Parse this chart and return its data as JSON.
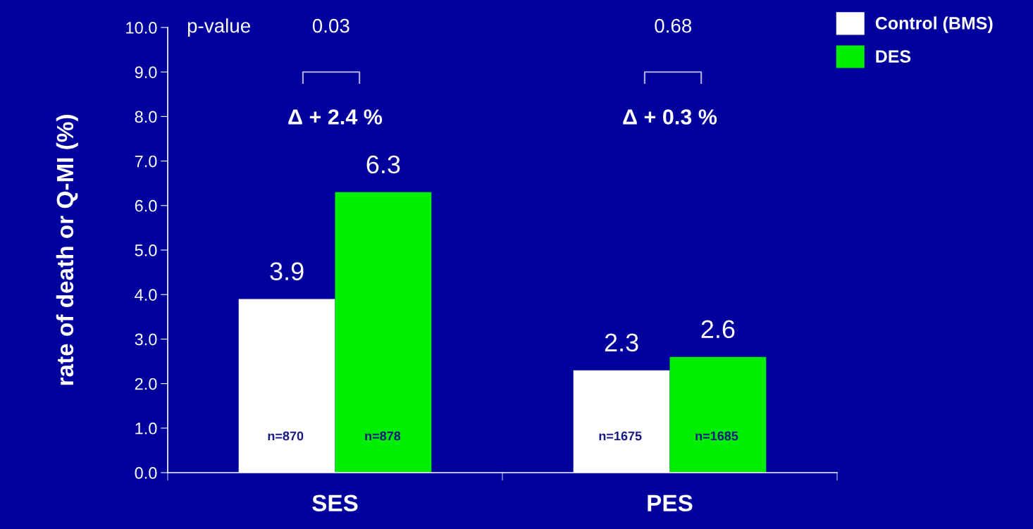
{
  "chart_data": {
    "type": "bar",
    "ylabel": "rate of death or Q-MI (%)",
    "categories": [
      "SES",
      "PES"
    ],
    "series": [
      {
        "name": "Control (BMS)",
        "color": "#ffffff",
        "values": [
          3.9,
          2.3
        ]
      },
      {
        "name": "DES",
        "color": "#00ee00",
        "values": [
          6.3,
          2.6
        ]
      }
    ],
    "ylim": [
      0,
      10
    ],
    "yticks": [
      {
        "value": 0,
        "label": "0.0"
      },
      {
        "value": 1,
        "label": "1.0"
      },
      {
        "value": 2,
        "label": "2.0"
      },
      {
        "value": 3,
        "label": "3.0"
      },
      {
        "value": 4,
        "label": "4.0"
      },
      {
        "value": 5,
        "label": "5.0"
      },
      {
        "value": 6,
        "label": "6.0"
      },
      {
        "value": 7,
        "label": "7.0"
      },
      {
        "value": 8,
        "label": "8.0"
      },
      {
        "value": 9,
        "label": "9.0"
      },
      {
        "value": 10,
        "label": "10.0"
      }
    ],
    "data_labels": true,
    "grid": false,
    "legend": "top right",
    "annotations": [
      "p-value",
      "0.03",
      "0.68",
      "Δ + 2.4 %",
      "Δ + 0.3 %",
      "n=870",
      "n=878",
      "n=1675",
      "n=1685"
    ]
  }
}
